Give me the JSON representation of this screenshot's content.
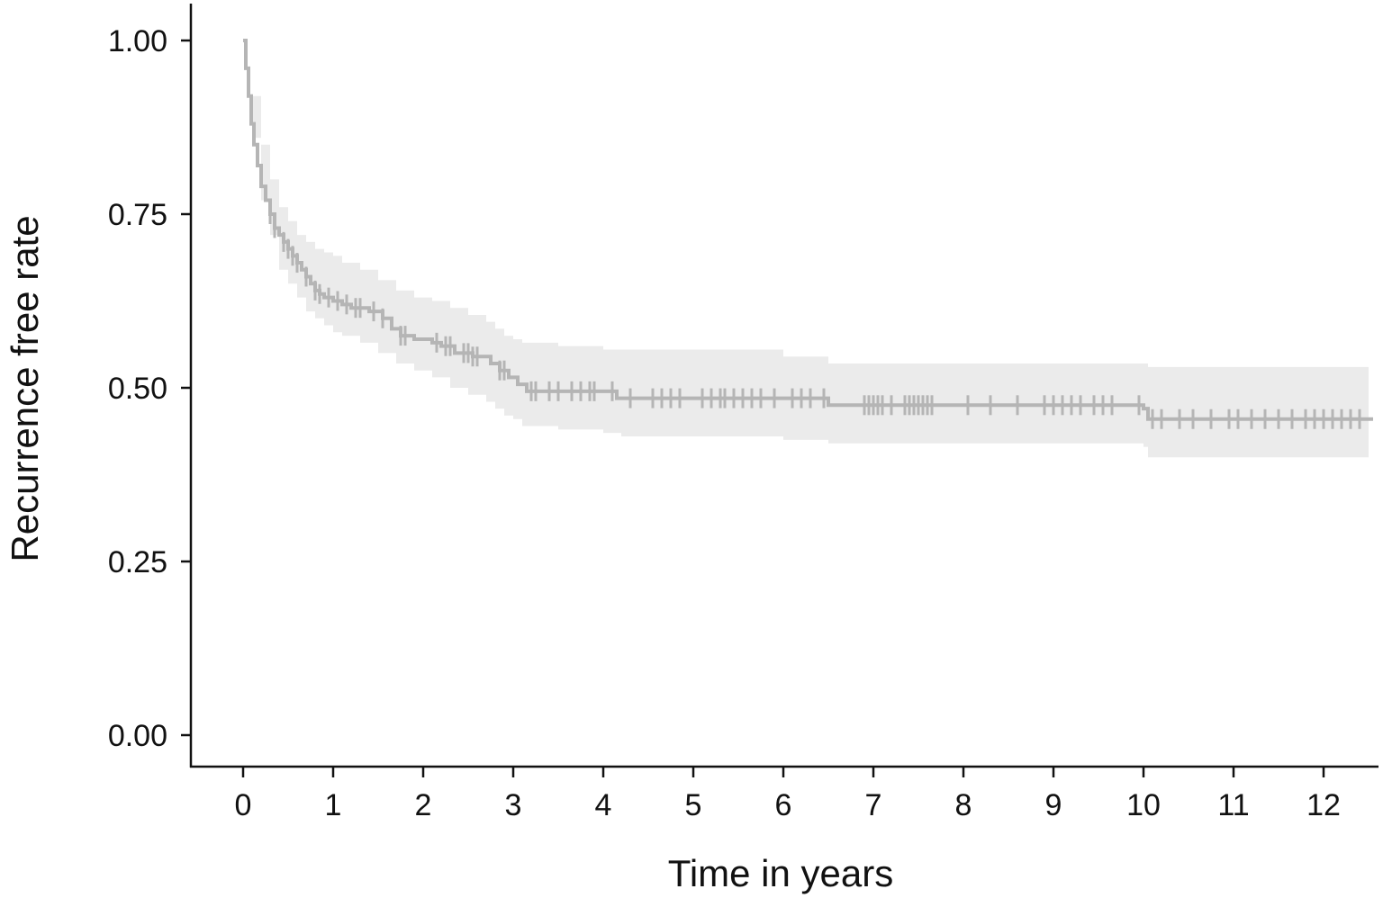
{
  "chart_data": {
    "type": "line",
    "title": "",
    "xlabel": "Time in years",
    "ylabel": "Recurrence free rate",
    "xlim": [
      -0.58,
      12.6
    ],
    "ylim": [
      -0.047,
      1.05
    ],
    "x_ticks": [
      0,
      1,
      2,
      3,
      4,
      5,
      6,
      7,
      8,
      9,
      10,
      11,
      12
    ],
    "x_tick_labels": [
      "0",
      "1",
      "2",
      "3",
      "4",
      "5",
      "6",
      "7",
      "8",
      "9",
      "10",
      "11",
      "12"
    ],
    "y_ticks": [
      0,
      0.25,
      0.5,
      0.75,
      1.0
    ],
    "y_tick_labels": [
      "0.00",
      "0.25",
      "0.50",
      "0.75",
      "1.00"
    ],
    "grid": false,
    "legend": "none",
    "colors": {
      "curve": "#b5b5b5",
      "band": "#ebebeb",
      "axis": "#111111"
    },
    "series": [
      {
        "survival_step": {
          "x": [
            0,
            0.03,
            0.06,
            0.09,
            0.12,
            0.16,
            0.2,
            0.25,
            0.3,
            0.35,
            0.4,
            0.45,
            0.5,
            0.55,
            0.6,
            0.65,
            0.7,
            0.75,
            0.8,
            0.85,
            0.9,
            1.0,
            1.1,
            1.2,
            1.4,
            1.55,
            1.65,
            1.75,
            1.9,
            2.1,
            2.2,
            2.35,
            2.55,
            2.75,
            2.85,
            2.95,
            3.05,
            3.15,
            4.0,
            4.15,
            6.0,
            6.5,
            10.0,
            10.05,
            12.5
          ],
          "y": [
            1.0,
            0.96,
            0.92,
            0.88,
            0.85,
            0.82,
            0.79,
            0.77,
            0.75,
            0.73,
            0.72,
            0.71,
            0.7,
            0.69,
            0.68,
            0.67,
            0.66,
            0.65,
            0.64,
            0.635,
            0.63,
            0.625,
            0.62,
            0.615,
            0.61,
            0.6,
            0.585,
            0.575,
            0.57,
            0.565,
            0.56,
            0.55,
            0.545,
            0.535,
            0.525,
            0.515,
            0.505,
            0.495,
            0.495,
            0.485,
            0.485,
            0.475,
            0.47,
            0.455,
            0.455
          ]
        },
        "ci_band": {
          "x": [
            0,
            0.1,
            0.2,
            0.3,
            0.4,
            0.5,
            0.6,
            0.7,
            0.8,
            0.9,
            1.0,
            1.1,
            1.3,
            1.5,
            1.7,
            1.9,
            2.1,
            2.3,
            2.5,
            2.7,
            2.8,
            2.9,
            3.0,
            3.1,
            3.5,
            4.0,
            4.2,
            6.0,
            6.5,
            10.0,
            10.05,
            12.4
          ],
          "lower": [
            1.0,
            0.86,
            0.77,
            0.72,
            0.67,
            0.65,
            0.63,
            0.61,
            0.6,
            0.59,
            0.58,
            0.575,
            0.565,
            0.55,
            0.535,
            0.525,
            0.515,
            0.5,
            0.49,
            0.48,
            0.47,
            0.46,
            0.455,
            0.445,
            0.44,
            0.435,
            0.43,
            0.425,
            0.42,
            0.415,
            0.4,
            0.4
          ],
          "upper": [
            1.0,
            0.92,
            0.85,
            0.8,
            0.76,
            0.74,
            0.72,
            0.71,
            0.7,
            0.695,
            0.69,
            0.68,
            0.67,
            0.655,
            0.64,
            0.63,
            0.625,
            0.615,
            0.605,
            0.595,
            0.585,
            0.575,
            0.57,
            0.565,
            0.56,
            0.555,
            0.555,
            0.545,
            0.535,
            0.535,
            0.53,
            0.53
          ]
        },
        "censor_times": [
          0.3,
          0.35,
          0.45,
          0.5,
          0.55,
          0.6,
          0.7,
          0.8,
          0.85,
          0.95,
          1.05,
          1.15,
          1.25,
          1.3,
          1.45,
          1.55,
          1.75,
          1.8,
          2.15,
          2.25,
          2.3,
          2.45,
          2.5,
          2.55,
          2.6,
          2.85,
          2.9,
          3.2,
          3.25,
          3.4,
          3.5,
          3.65,
          3.75,
          3.85,
          3.9,
          4.1,
          4.3,
          4.55,
          4.65,
          4.75,
          4.85,
          5.1,
          5.2,
          5.3,
          5.35,
          5.45,
          5.55,
          5.65,
          5.75,
          5.9,
          6.1,
          6.2,
          6.3,
          6.45,
          6.9,
          6.95,
          7.0,
          7.05,
          7.1,
          7.2,
          7.35,
          7.4,
          7.45,
          7.5,
          7.55,
          7.6,
          7.65,
          8.05,
          8.3,
          8.6,
          8.9,
          9.0,
          9.1,
          9.2,
          9.3,
          9.45,
          9.55,
          9.65,
          9.95,
          10.1,
          10.2,
          10.4,
          10.55,
          10.75,
          10.95,
          11.05,
          11.2,
          11.35,
          11.5,
          11.65,
          11.8,
          11.9,
          12.0,
          12.1,
          12.2,
          12.3,
          12.4
        ]
      }
    ]
  }
}
